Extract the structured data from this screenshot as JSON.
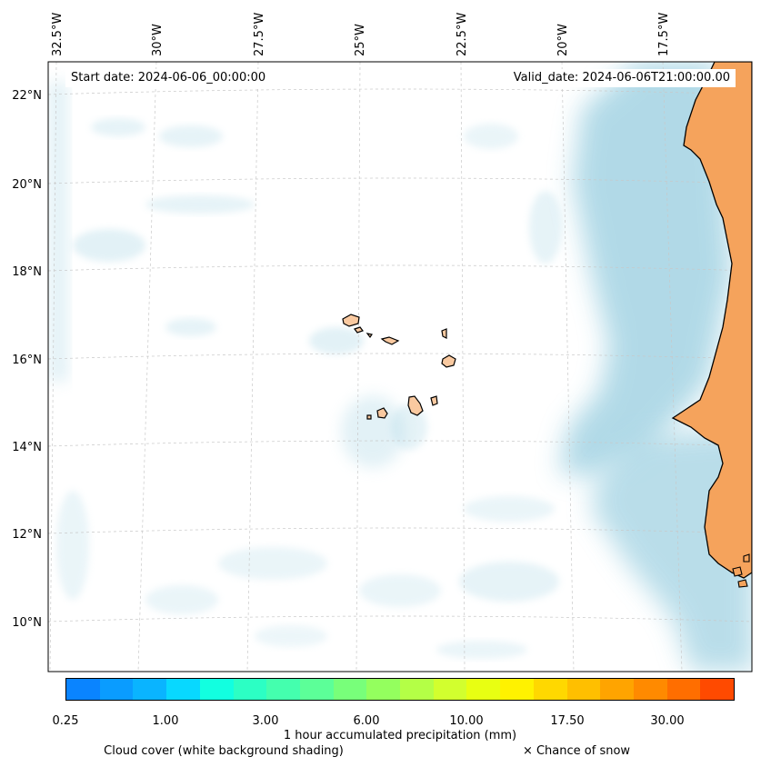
{
  "header": {
    "start_date": "Start date: 2024-06-06_00:00:00",
    "valid_date": "Valid_date: 2024-06-06T21:00:00.00"
  },
  "axes": {
    "longitude_labels": [
      "32.5°W",
      "30°W",
      "27.5°W",
      "25°W",
      "22.5°W",
      "20°W",
      "17.5°W"
    ],
    "latitude_labels": [
      "22°N",
      "20°N",
      "18°N",
      "16°N",
      "14°N",
      "12°N",
      "10°N"
    ]
  },
  "colorbar": {
    "title": "1 hour accumulated precipitation (mm)",
    "tick_labels": [
      "0.25",
      "1.00",
      "3.00",
      "6.00",
      "10.00",
      "17.50",
      "30.00"
    ],
    "colors": [
      "#0a84ff",
      "#0a9cff",
      "#0ab4ff",
      "#08d8ff",
      "#12ffe0",
      "#2cffc4",
      "#44ffae",
      "#5cff98",
      "#78ff7a",
      "#94ff5e",
      "#b4ff46",
      "#d2ff2e",
      "#e8ff12",
      "#fff200",
      "#ffd800",
      "#ffbf00",
      "#ffa400",
      "#ff8a00",
      "#ff6e00",
      "#ff4a00"
    ]
  },
  "legend": {
    "cloud_cover": "Cloud cover (white background shading)",
    "snow": "× Chance of snow"
  },
  "colors": {
    "cloud": "#add8e6",
    "land_mainland": "#f5a35c",
    "land_island": "#f9c9a0",
    "coast": "#000000",
    "grid": "#c8c8c8"
  }
}
